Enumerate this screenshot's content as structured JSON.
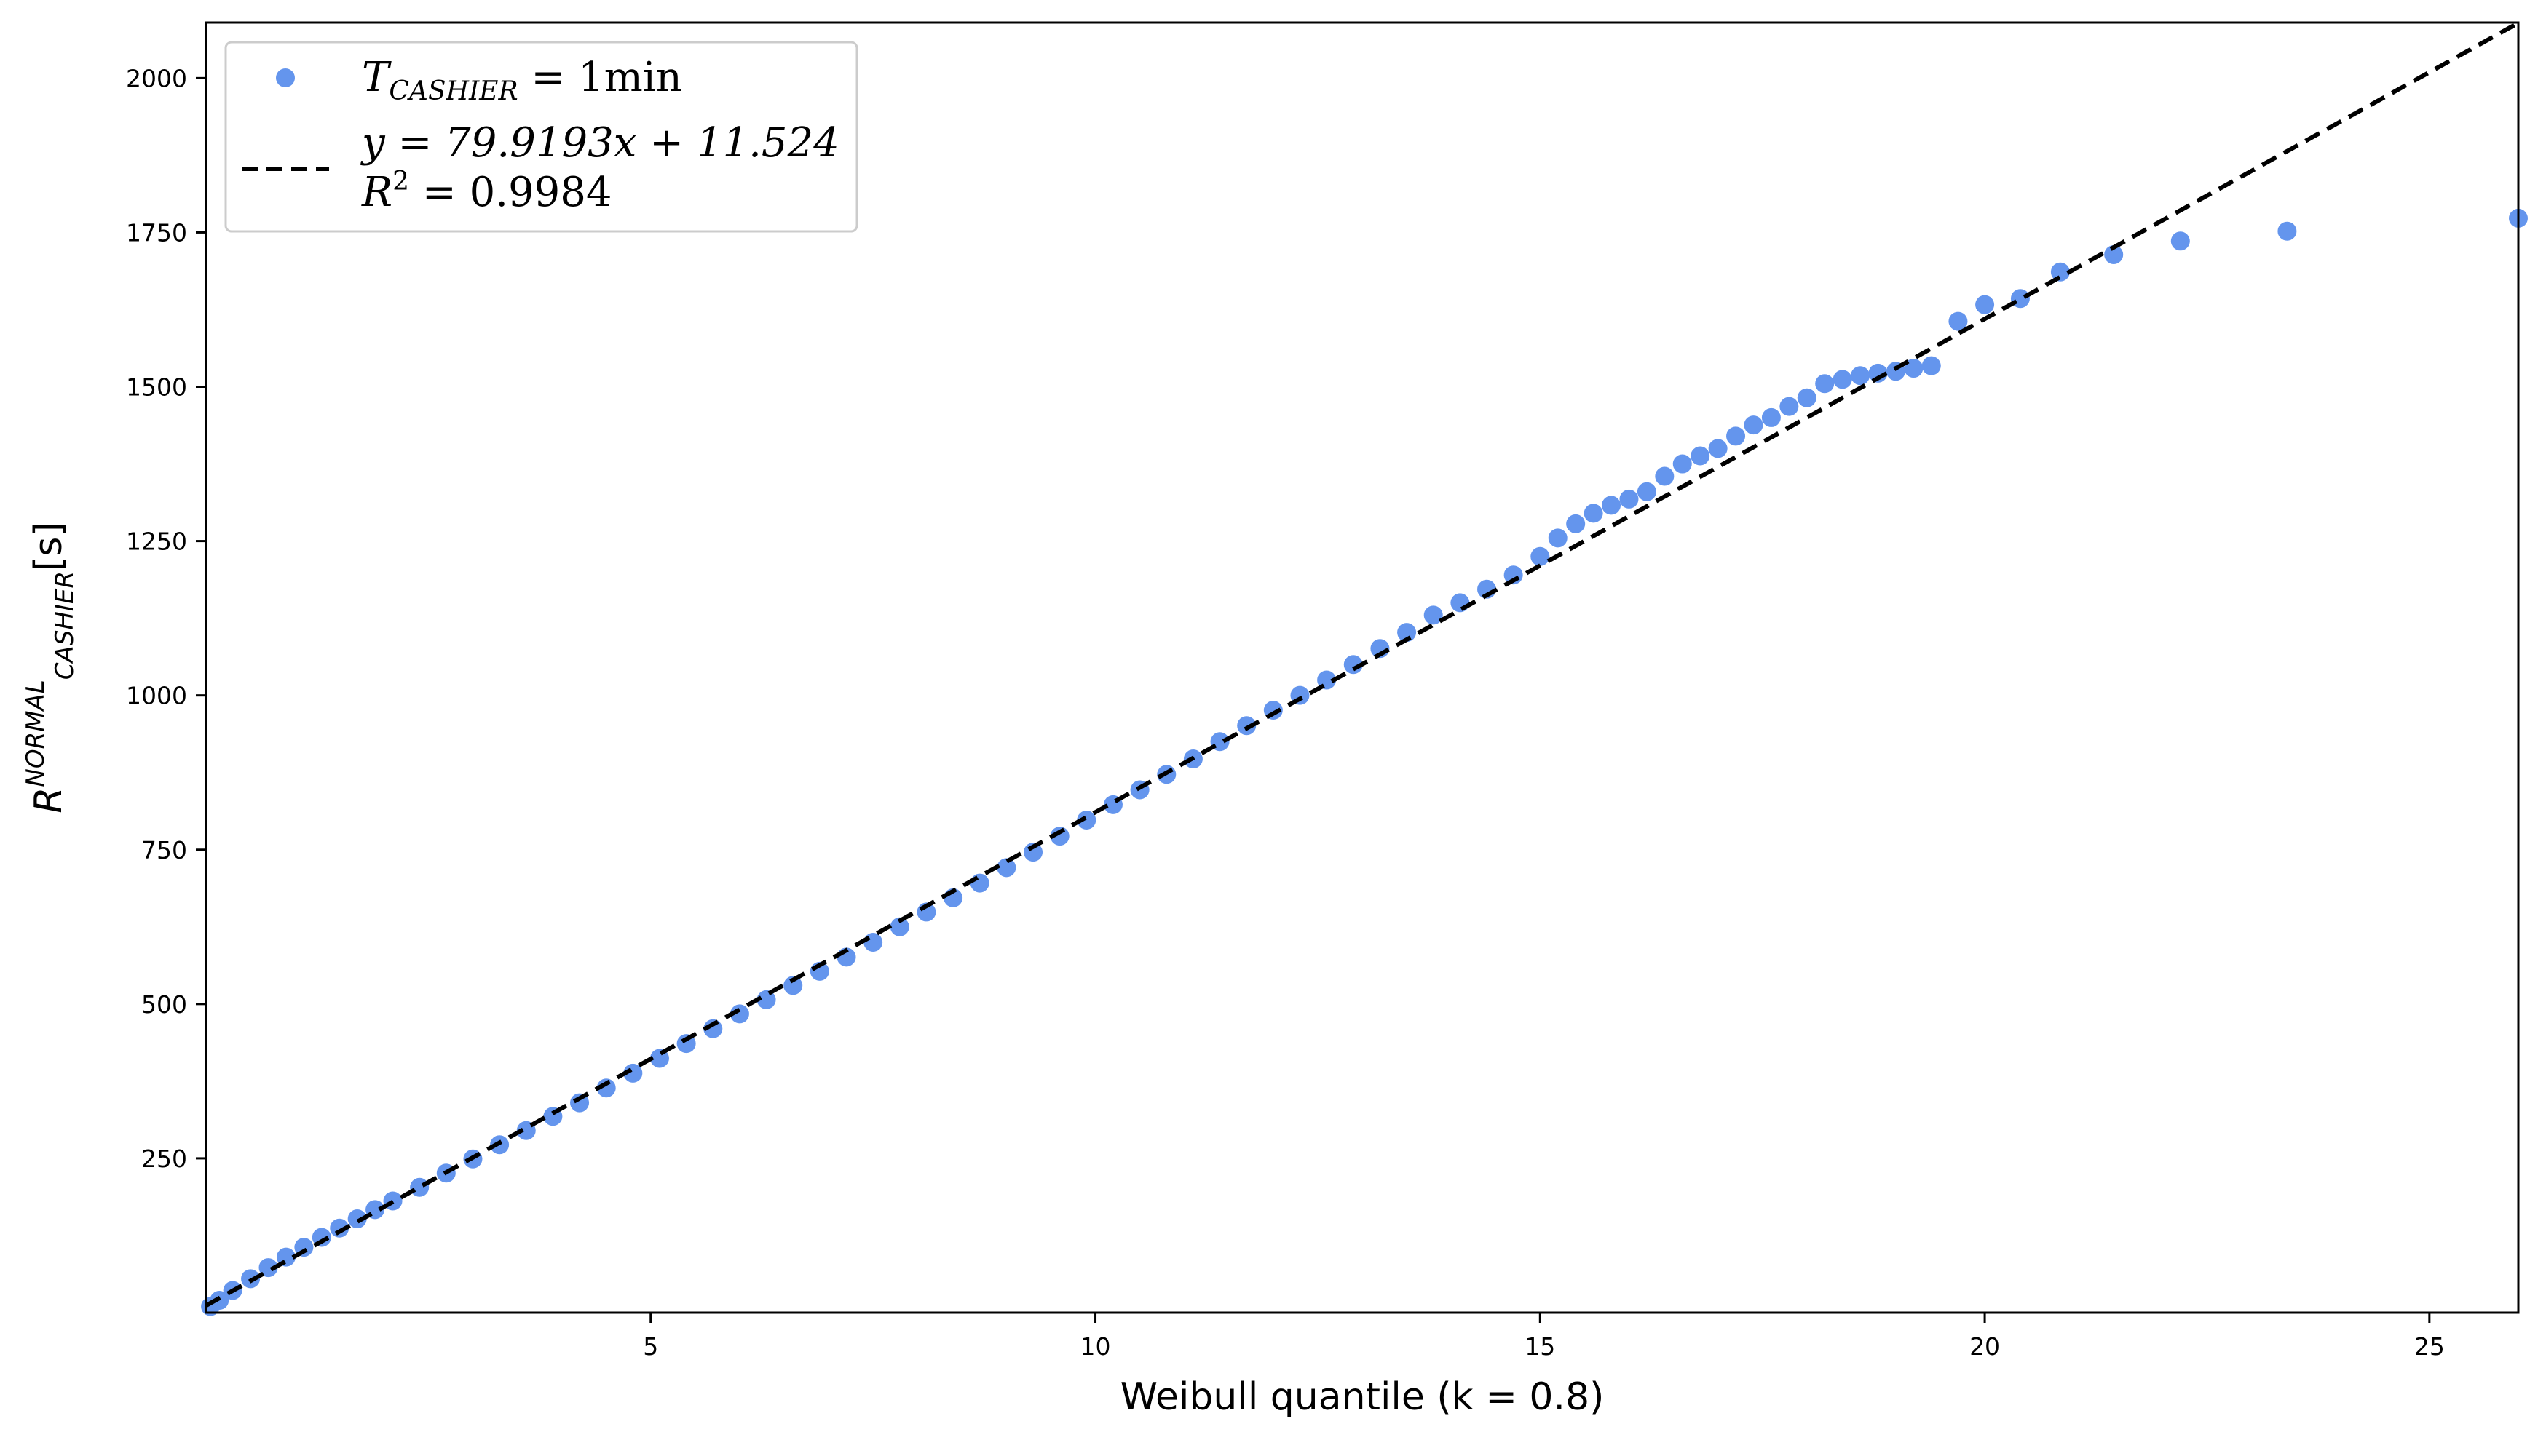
{
  "chart_data": {
    "type": "scatter",
    "xlabel": "Weibull quantile (k = 0.8)",
    "ylabel": "R",
    "ylabel_sup": "NORMAL",
    "ylabel_sub": "CASHIER",
    "ylabel_unit": "[s]",
    "xlim": [
      0.0,
      26.0
    ],
    "ylim": [
      0,
      2090
    ],
    "xticks": [
      5,
      10,
      15,
      20,
      25
    ],
    "yticks": [
      250,
      500,
      750,
      1000,
      1250,
      1500,
      1750,
      2000
    ],
    "grid": false,
    "legend_position": "top-left",
    "colors": {
      "points": "#6495ED",
      "fit": "#000000"
    },
    "series": [
      {
        "name": "T_CASHIER = 1min",
        "legend_main": "T",
        "legend_sub": "CASHIER",
        "legend_rest": " = 1min",
        "kind": "scatter",
        "points": [
          [
            0.05,
            10
          ],
          [
            0.15,
            20
          ],
          [
            0.3,
            36
          ],
          [
            0.5,
            55
          ],
          [
            0.7,
            73
          ],
          [
            0.9,
            90
          ],
          [
            1.1,
            106
          ],
          [
            1.3,
            122
          ],
          [
            1.5,
            137
          ],
          [
            1.7,
            152
          ],
          [
            1.9,
            167
          ],
          [
            2.1,
            181
          ],
          [
            2.4,
            203
          ],
          [
            2.7,
            226
          ],
          [
            3.0,
            249
          ],
          [
            3.3,
            272
          ],
          [
            3.6,
            295
          ],
          [
            3.9,
            318
          ],
          [
            4.2,
            340
          ],
          [
            4.5,
            364
          ],
          [
            4.8,
            388
          ],
          [
            5.1,
            412
          ],
          [
            5.4,
            436
          ],
          [
            5.7,
            460
          ],
          [
            6.0,
            484
          ],
          [
            6.3,
            507
          ],
          [
            6.6,
            530
          ],
          [
            6.9,
            553
          ],
          [
            7.2,
            576
          ],
          [
            7.5,
            600
          ],
          [
            7.8,
            625
          ],
          [
            8.1,
            649
          ],
          [
            8.4,
            672
          ],
          [
            8.7,
            696
          ],
          [
            9.0,
            721
          ],
          [
            9.3,
            746
          ],
          [
            9.6,
            772
          ],
          [
            9.9,
            798
          ],
          [
            10.2,
            823
          ],
          [
            10.5,
            847
          ],
          [
            10.8,
            872
          ],
          [
            11.1,
            897
          ],
          [
            11.4,
            925
          ],
          [
            11.7,
            951
          ],
          [
            12.0,
            976
          ],
          [
            12.3,
            1000
          ],
          [
            12.6,
            1025
          ],
          [
            12.9,
            1050
          ],
          [
            13.2,
            1076
          ],
          [
            13.5,
            1102
          ],
          [
            13.8,
            1130
          ],
          [
            14.1,
            1150
          ],
          [
            14.4,
            1172
          ],
          [
            14.7,
            1195
          ],
          [
            15.0,
            1225
          ],
          [
            15.2,
            1255
          ],
          [
            15.4,
            1278
          ],
          [
            15.6,
            1295
          ],
          [
            15.8,
            1308
          ],
          [
            16.0,
            1318
          ],
          [
            16.2,
            1330
          ],
          [
            16.4,
            1355
          ],
          [
            16.6,
            1375
          ],
          [
            16.8,
            1388
          ],
          [
            17.0,
            1400
          ],
          [
            17.2,
            1420
          ],
          [
            17.4,
            1438
          ],
          [
            17.6,
            1450
          ],
          [
            17.8,
            1468
          ],
          [
            18.0,
            1482
          ],
          [
            18.2,
            1505
          ],
          [
            18.4,
            1512
          ],
          [
            18.6,
            1518
          ],
          [
            18.8,
            1522
          ],
          [
            19.0,
            1525
          ],
          [
            19.2,
            1530
          ],
          [
            19.4,
            1534
          ],
          [
            19.7,
            1606
          ],
          [
            20.0,
            1633
          ],
          [
            20.4,
            1643
          ],
          [
            20.85,
            1686
          ],
          [
            21.45,
            1714
          ],
          [
            22.2,
            1736
          ],
          [
            23.4,
            1752
          ],
          [
            26.0,
            1773
          ]
        ]
      },
      {
        "name": "y = 79.9193x + 11.524",
        "legend_line1": "y = 79.9193x + 11.524",
        "legend_line2_main": "R",
        "legend_line2_sup": "2",
        "legend_line2_rest": " = 0.9984",
        "kind": "line",
        "style": "dashed",
        "slope": 79.9193,
        "intercept": 11.524
      }
    ]
  }
}
